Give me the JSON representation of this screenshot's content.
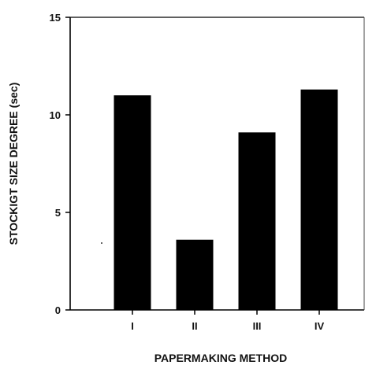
{
  "chart_data": {
    "type": "bar",
    "title": "",
    "xlabel": "PAPERMAKING METHOD",
    "ylabel": "STOCKIGT SIZE DEGREE (sec)",
    "categories": [
      "I",
      "II",
      "III",
      "IV"
    ],
    "values": [
      11.0,
      3.6,
      9.1,
      11.3
    ],
    "ylim": [
      0,
      15
    ],
    "yticks": [
      0,
      5,
      10,
      15
    ],
    "grid": false,
    "legend": "none",
    "bar_color": "#000000"
  }
}
